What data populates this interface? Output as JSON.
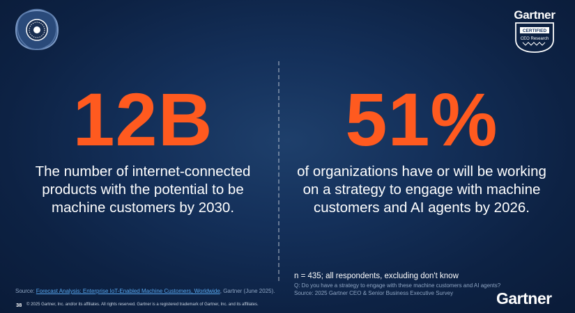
{
  "header": {
    "left_badge_icon": "badge-seal-icon",
    "brand_name": "Gartner",
    "certification": {
      "line1": "CERTIFIED",
      "line2": "CEO Research",
      "icon": "certified-seal-icon"
    }
  },
  "stats": [
    {
      "value": "12B",
      "description": "The number of internet-connected products with the potential to be machine customers by 2030."
    },
    {
      "value": "51%",
      "description": "of organizations have or will be working on a strategy to engage with machine customers and AI agents by 2026."
    }
  ],
  "notes": {
    "sample": "n = 435; all respondents, excluding don't know",
    "question": "Q: Do you have a strategy to engage with these machine customers and AI agents?",
    "survey_source": "Source: 2025 Gartner CEO & Senior Business Executive Survey"
  },
  "footer": {
    "source_prefix": "Source: ",
    "source_link": "Forecast Analysis: Enterprise IoT-Enabled Machine Customers, Worldwide",
    "source_suffix": ", Gartner (June 2025).",
    "page_number": "38",
    "copyright": "© 2025 Gartner, Inc. and/or its affiliates. All rights reserved. Gartner is a registered trademark of Gartner, Inc. and its affiliates.",
    "brand_name": "Gartner"
  },
  "colors": {
    "accent": "#ff5a1f",
    "background": "#14305a",
    "link": "#58a8f0"
  }
}
